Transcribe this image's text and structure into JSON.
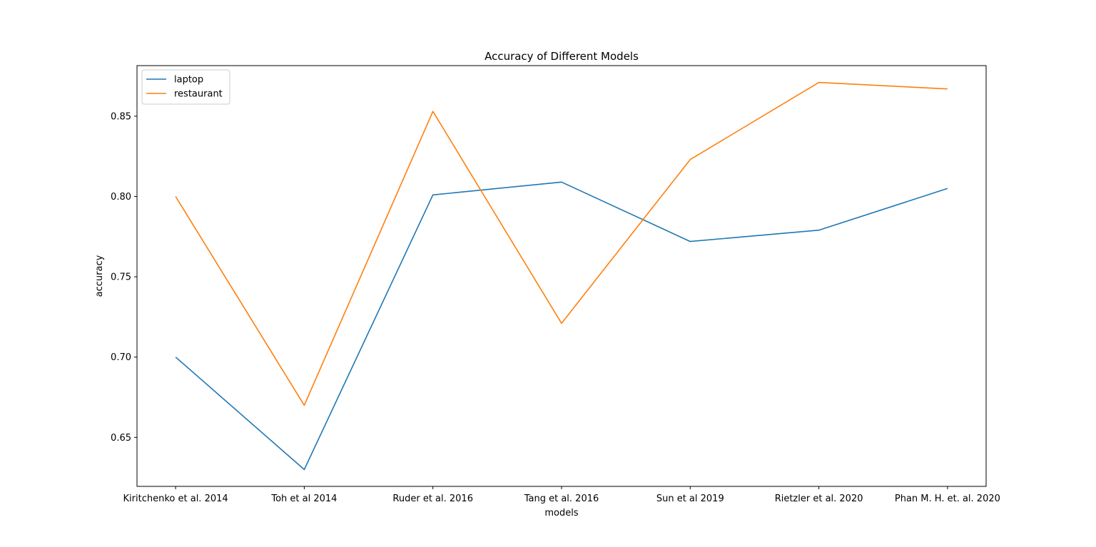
{
  "chart_data": {
    "type": "line",
    "title": "Accuracy of Different Models",
    "xlabel": "models",
    "ylabel": "accuracy",
    "categories": [
      "Kiritchenko et al. 2014",
      "Toh et al 2014",
      "Ruder et al. 2016",
      "Tang et al. 2016",
      "Sun et al 2019",
      "Rietzler et al. 2020",
      "Phan M. H. et. al. 2020"
    ],
    "series": [
      {
        "name": "laptop",
        "color": "#1f77b4",
        "values": [
          0.7,
          0.63,
          0.801,
          0.809,
          0.772,
          0.779,
          0.805
        ]
      },
      {
        "name": "restaurant",
        "color": "#ff7f0e",
        "values": [
          0.8,
          0.67,
          0.853,
          0.721,
          0.823,
          0.871,
          0.867
        ]
      }
    ],
    "ylim": [
      0.6195,
      0.8815
    ],
    "yticks": [
      "0.65",
      "0.70",
      "0.75",
      "0.80",
      "0.85"
    ],
    "legend": "upper-left",
    "grid": false
  }
}
